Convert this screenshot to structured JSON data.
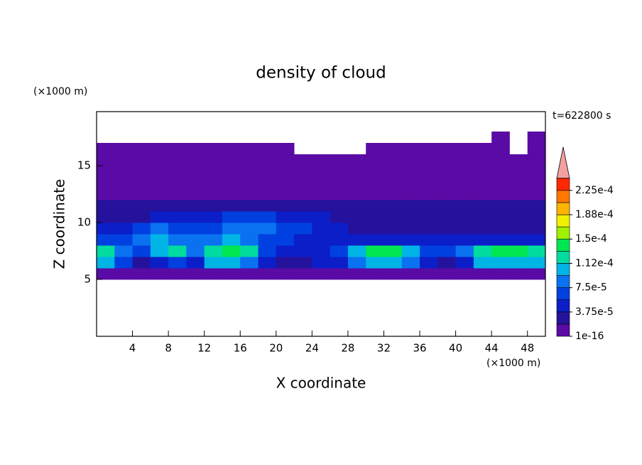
{
  "chart_data": {
    "type": "contour",
    "title": "density of cloud",
    "y_unit": "(×1000 m)",
    "x_unit": "(×1000 m)",
    "xlabel": "X coordinate",
    "ylabel": "Z coordinate",
    "annotation": "t=622800 s",
    "xlim": [
      0,
      50
    ],
    "ylim": [
      0,
      19.75
    ],
    "xticks": [
      4,
      8,
      12,
      16,
      20,
      24,
      28,
      32,
      36,
      40,
      44,
      48
    ],
    "yticks": [
      5,
      10,
      15
    ],
    "x": [
      1,
      3,
      5,
      7,
      9,
      11,
      13,
      15,
      17,
      19,
      21,
      23,
      25,
      27,
      29,
      31,
      33,
      35,
      37,
      39,
      41,
      43,
      45,
      47,
      49
    ],
    "y": [
      5.5,
      6.5,
      7.5,
      8.5,
      9.5,
      10.5,
      11.5,
      12.5,
      13.5,
      14.5,
      15.5,
      16.5,
      17.5
    ],
    "z": [
      [
        1e-05,
        1e-05,
        1e-05,
        1e-05,
        1e-05,
        1e-05,
        1e-05,
        1e-05,
        1e-05,
        1e-05,
        1e-05,
        1e-05,
        1e-05,
        1e-05,
        1e-05,
        1e-05,
        1e-05,
        1e-05,
        1e-05,
        1e-05,
        1e-05,
        1e-05,
        1e-05,
        1e-05,
        1e-05
      ],
      [
        0.000103,
        6.5e-05,
        2.8e-05,
        4.7e-05,
        6.5e-05,
        4.7e-05,
        0.000103,
        0.000103,
        8.4e-05,
        4.7e-05,
        2.8e-05,
        2.8e-05,
        4.7e-05,
        4.7e-05,
        8.4e-05,
        0.000103,
        0.000103,
        8.4e-05,
        4.7e-05,
        2.8e-05,
        4.7e-05,
        0.000103,
        0.000103,
        0.000103,
        0.000103
      ],
      [
        0.000122,
        8.4e-05,
        6.5e-05,
        0.000103,
        0.000122,
        8.4e-05,
        0.000122,
        0.00014,
        0.000122,
        6.5e-05,
        4.7e-05,
        4.7e-05,
        4.7e-05,
        6.5e-05,
        0.000103,
        0.00014,
        0.00014,
        0.000103,
        6.5e-05,
        6.5e-05,
        8.4e-05,
        0.000122,
        0.00014,
        0.00014,
        0.000122
      ],
      [
        6.5e-05,
        6.5e-05,
        8.4e-05,
        0.000103,
        8.4e-05,
        8.4e-05,
        8.4e-05,
        0.000103,
        8.4e-05,
        6.5e-05,
        6.5e-05,
        4.7e-05,
        4.7e-05,
        4.7e-05,
        4.7e-05,
        4.7e-05,
        4.7e-05,
        4.7e-05,
        4.7e-05,
        4.7e-05,
        4.7e-05,
        4.7e-05,
        4.7e-05,
        4.7e-05,
        4.7e-05
      ],
      [
        4.7e-05,
        4.7e-05,
        6.5e-05,
        8.4e-05,
        6.5e-05,
        6.5e-05,
        6.5e-05,
        8.4e-05,
        8.4e-05,
        8.4e-05,
        6.5e-05,
        6.5e-05,
        4.7e-05,
        4.7e-05,
        2.8e-05,
        2.8e-05,
        2.8e-05,
        2.8e-05,
        2.8e-05,
        2.8e-05,
        2.8e-05,
        2.8e-05,
        2.8e-05,
        2.8e-05,
        2.8e-05
      ],
      [
        2.8e-05,
        2.8e-05,
        2.8e-05,
        4.7e-05,
        4.7e-05,
        4.7e-05,
        4.7e-05,
        6.5e-05,
        6.5e-05,
        6.5e-05,
        4.7e-05,
        4.7e-05,
        4.7e-05,
        2.8e-05,
        2.8e-05,
        2.8e-05,
        2.8e-05,
        2.8e-05,
        2.8e-05,
        2.8e-05,
        2.8e-05,
        2.8e-05,
        2.8e-05,
        2.8e-05,
        2.8e-05
      ],
      [
        2.8e-05,
        2.8e-05,
        2.8e-05,
        2.8e-05,
        2.8e-05,
        2.8e-05,
        2.8e-05,
        2.8e-05,
        2.8e-05,
        2.8e-05,
        2.8e-05,
        2.8e-05,
        2.8e-05,
        2.8e-05,
        2.8e-05,
        2.8e-05,
        2.8e-05,
        2.8e-05,
        2.8e-05,
        2.8e-05,
        2.8e-05,
        2.8e-05,
        2.8e-05,
        2.8e-05,
        2.8e-05
      ],
      [
        1e-05,
        1e-05,
        1e-05,
        1e-05,
        1e-05,
        1e-05,
        1e-05,
        1e-05,
        1e-05,
        1e-05,
        1e-05,
        1e-05,
        1e-05,
        1e-05,
        1e-05,
        1e-05,
        1e-05,
        1e-05,
        1e-05,
        1e-05,
        1e-05,
        1e-05,
        1e-05,
        1e-05,
        1e-05
      ],
      [
        1e-05,
        1e-05,
        1e-05,
        1e-05,
        1e-05,
        1e-05,
        1e-05,
        1e-05,
        1e-05,
        1e-05,
        1e-05,
        1e-05,
        1e-05,
        1e-05,
        1e-05,
        1e-05,
        1e-05,
        1e-05,
        1e-05,
        1e-05,
        1e-05,
        1e-05,
        1e-05,
        1e-05,
        1e-05
      ],
      [
        1e-05,
        1e-05,
        1e-05,
        1e-05,
        1e-05,
        1e-05,
        1e-05,
        1e-05,
        1e-05,
        1e-05,
        1e-05,
        1e-05,
        1e-05,
        1e-05,
        1e-05,
        1e-05,
        1e-05,
        1e-05,
        1e-05,
        1e-05,
        1e-05,
        1e-05,
        1e-05,
        1e-05,
        1e-05
      ],
      [
        1e-05,
        1e-05,
        1e-05,
        1e-05,
        1e-05,
        1e-05,
        1e-05,
        1e-05,
        1e-05,
        1e-05,
        1e-05,
        1e-05,
        1e-05,
        1e-05,
        1e-05,
        1e-05,
        1e-05,
        1e-05,
        1e-05,
        1e-05,
        1e-05,
        1e-05,
        1e-05,
        1e-05,
        1e-05
      ],
      [
        1e-05,
        1e-05,
        1e-05,
        1e-05,
        1e-05,
        1e-05,
        1e-05,
        1e-05,
        1e-05,
        1e-05,
        1e-05,
        null,
        null,
        null,
        null,
        1e-05,
        1e-05,
        1e-05,
        1e-05,
        1e-05,
        1e-05,
        1e-05,
        1e-05,
        null,
        1e-05
      ],
      [
        null,
        null,
        null,
        null,
        null,
        null,
        null,
        null,
        null,
        null,
        null,
        null,
        null,
        null,
        null,
        null,
        null,
        null,
        null,
        null,
        null,
        null,
        1e-05,
        null,
        1e-05
      ]
    ],
    "colorbar": {
      "levels": [
        1e-16,
        1.875e-05,
        3.75e-05,
        5.625e-05,
        7.5e-05,
        9.375e-05,
        0.0001125,
        0.00013125,
        0.00015,
        0.00016875,
        0.0001875,
        0.00020625,
        0.000225,
        0.00024375
      ],
      "colors": [
        "#5a0aa5",
        "#24129c",
        "#0c1ec8",
        "#0040e0",
        "#0a72f0",
        "#00b4e6",
        "#00dca0",
        "#00e650",
        "#a0f000",
        "#f0f000",
        "#ffb400",
        "#ff7800",
        "#ff2800"
      ],
      "extend_color": "#f4a0a0",
      "ticks": [
        1e-16,
        {
          "value": 3.75e-05,
          "label": "3.75e-5"
        },
        {
          "value": 7.5e-05,
          "label": "7.5e-5"
        },
        {
          "value": 0.0001125,
          "label": "1.12e-4"
        },
        {
          "value": 0.00015,
          "label": "1.5e-4"
        },
        {
          "value": 0.0001875,
          "label": "1.88e-4"
        },
        {
          "value": 0.000225,
          "label": "2.25e-4"
        }
      ]
    }
  }
}
